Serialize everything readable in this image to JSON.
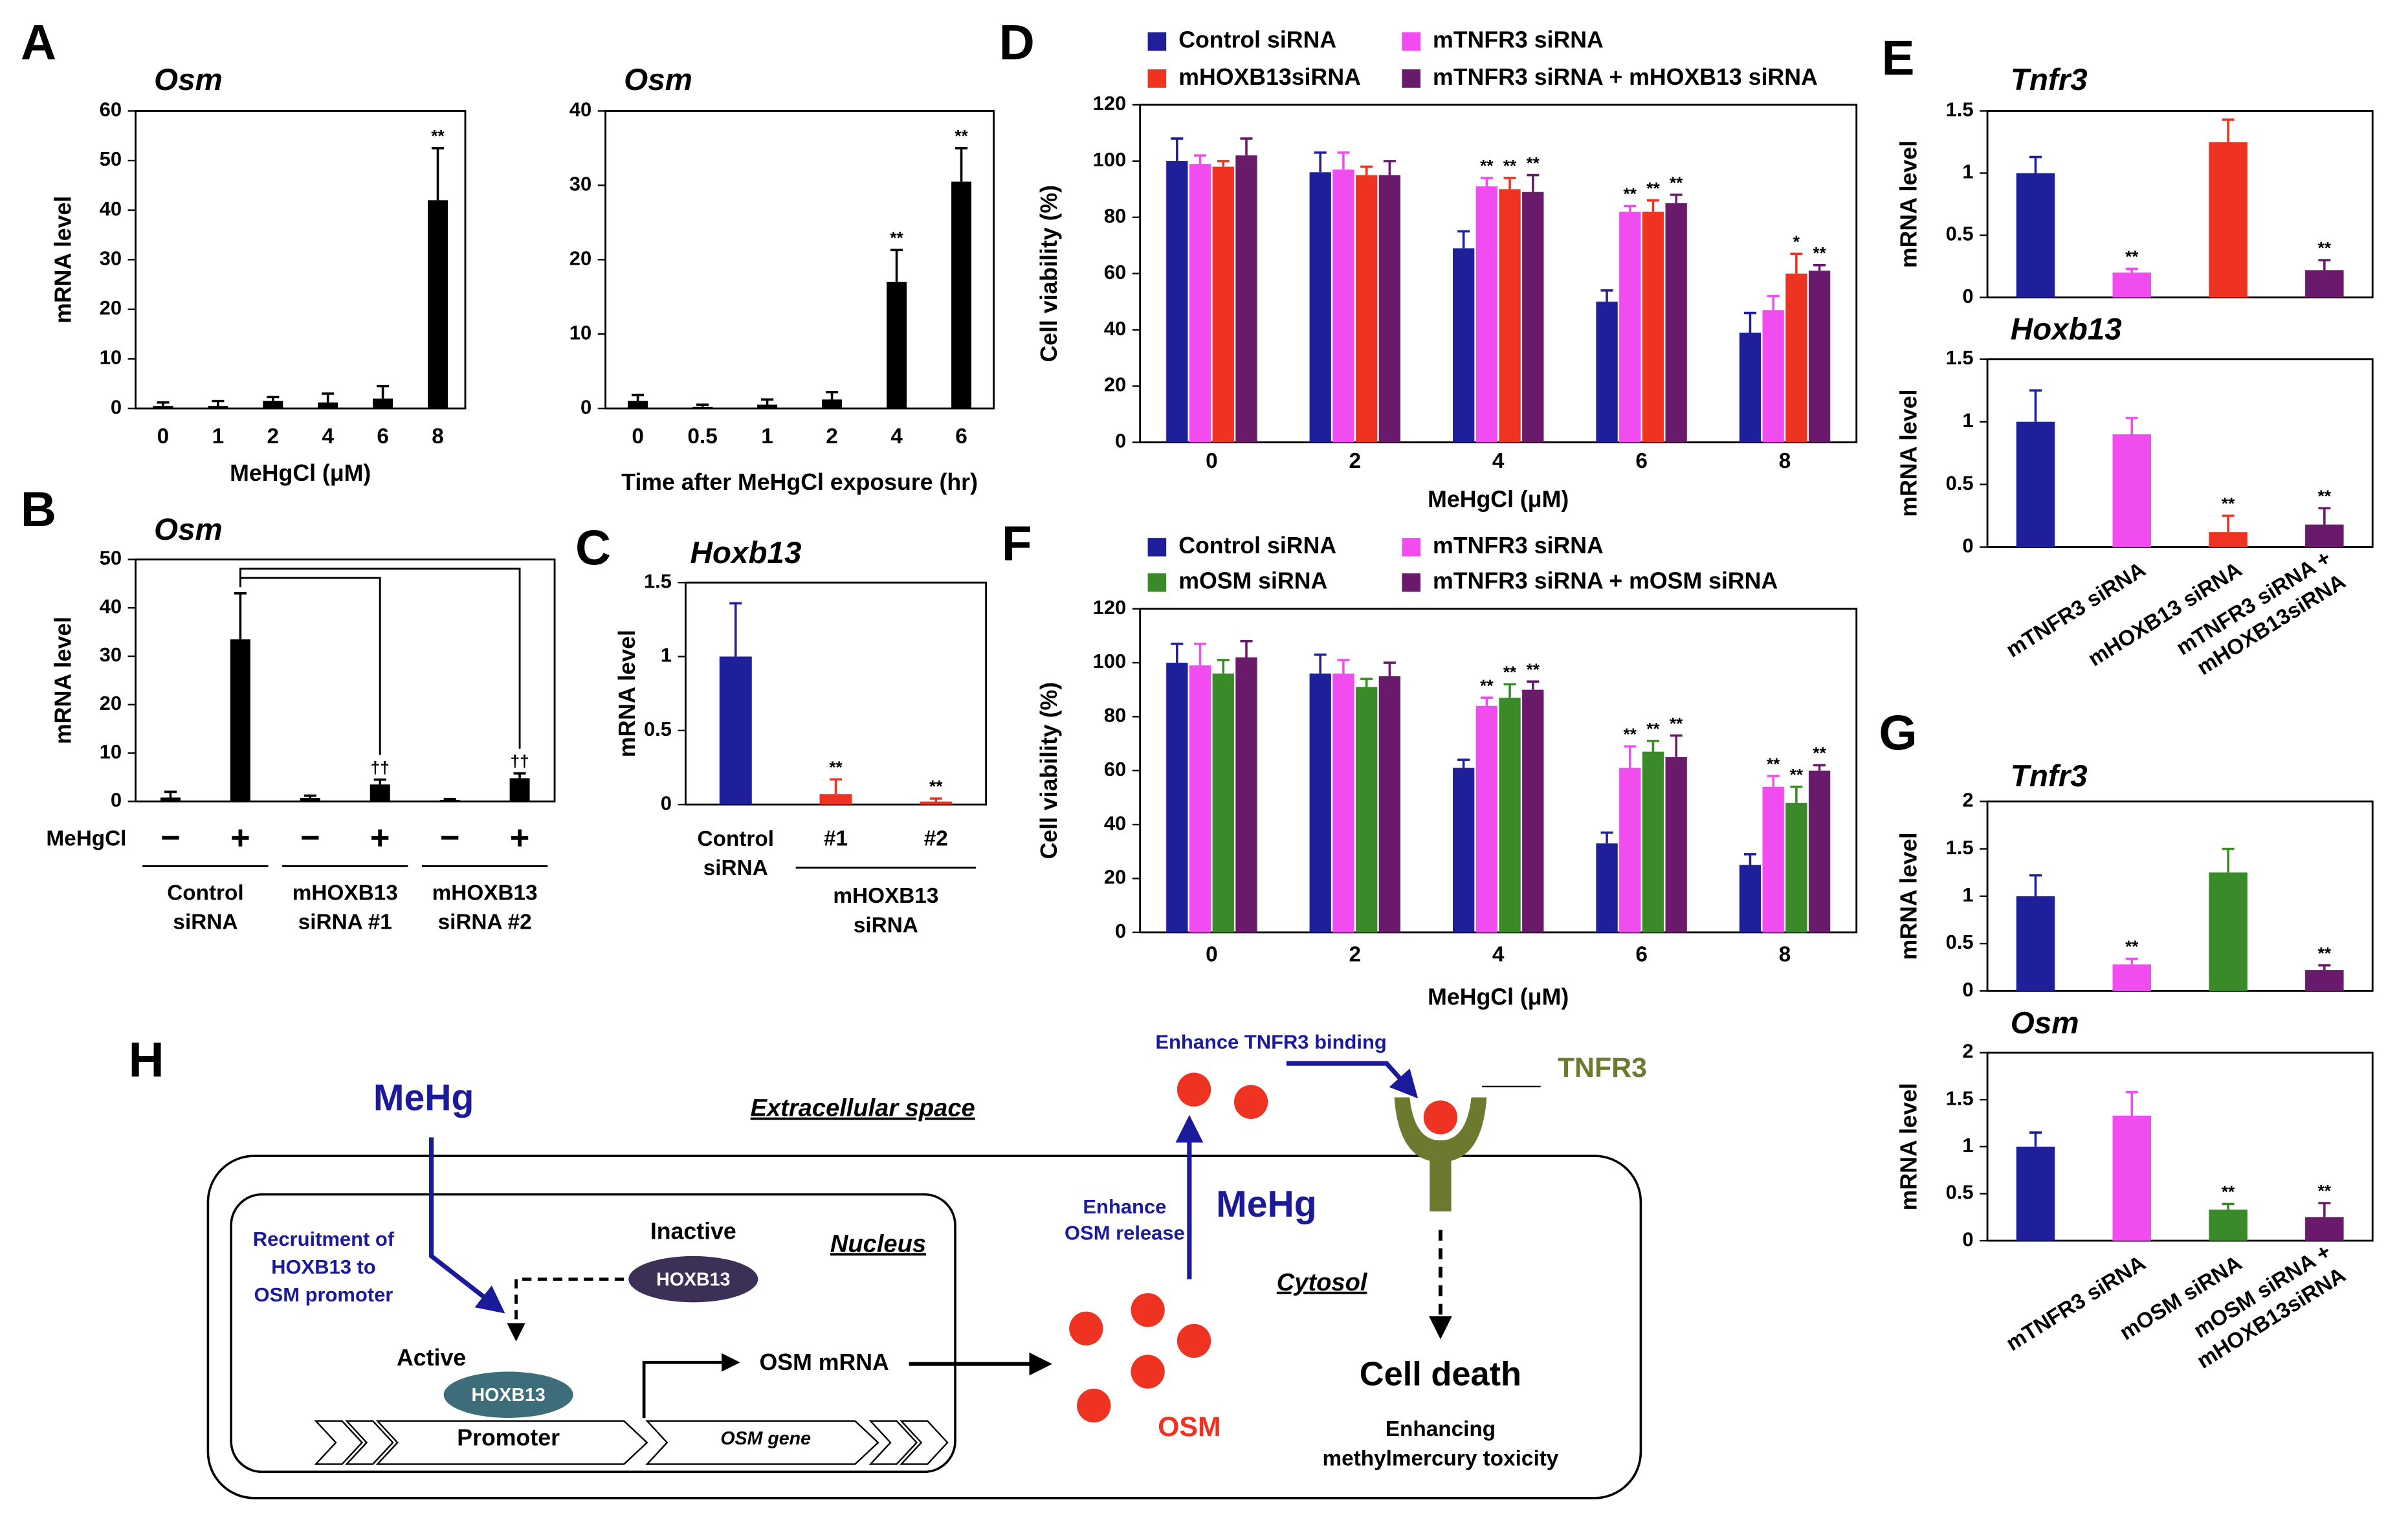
{
  "panels": [
    "A",
    "B",
    "C",
    "D",
    "E",
    "F",
    "G",
    "H"
  ],
  "chart_data": [
    {
      "type": "bar",
      "title": "Osm",
      "ylabel": "mRNA level",
      "xlabel": "MeHgCl (μM)",
      "categories": [
        "0",
        "1",
        "2",
        "4",
        "6",
        "8"
      ],
      "series": [
        {
          "color": "#000000",
          "values": [
            0.5,
            0.5,
            1.5,
            1.2,
            2,
            42
          ],
          "errors": [
            0.7,
            1,
            0.8,
            1.8,
            2.5,
            10.5
          ],
          "annotations": [
            null,
            null,
            null,
            null,
            null,
            "**"
          ]
        }
      ],
      "ylim": [
        0,
        60
      ],
      "yticks": [
        0,
        10,
        20,
        30,
        40,
        50,
        60
      ]
    },
    {
      "type": "bar",
      "title": "Osm",
      "xlabel": "Time after MeHgCl exposure (hr)",
      "categories": [
        "0",
        "0.5",
        "1",
        "2",
        "4",
        "6"
      ],
      "series": [
        {
          "color": "#000000",
          "values": [
            1,
            0.2,
            0.5,
            1.2,
            17,
            30.5
          ],
          "errors": [
            0.8,
            0.3,
            0.7,
            1,
            4.3,
            4.5
          ],
          "annotations": [
            null,
            null,
            null,
            null,
            "**",
            "**"
          ]
        }
      ],
      "ylim": [
        0,
        40
      ],
      "yticks": [
        0,
        10,
        20,
        30,
        40
      ]
    },
    {
      "type": "bar",
      "title": "Osm",
      "ylabel": "mRNA level",
      "row_label": "MeHgCl",
      "categories": [
        "−",
        "+",
        "−",
        "+",
        "−",
        "+"
      ],
      "groups": [
        [
          "Control",
          "siRNA"
        ],
        [
          "mHOXB13",
          "siRNA #1"
        ],
        [
          "mHOXB13",
          "siRNA #2"
        ]
      ],
      "series": [
        {
          "color": "#000000",
          "values": [
            0.8,
            33.5,
            0.7,
            3.5,
            0.3,
            4.8
          ],
          "errors": [
            1.2,
            9.5,
            0.5,
            1,
            0.2,
            1
          ],
          "annotations": [
            null,
            null,
            null,
            "††",
            null,
            "††"
          ]
        }
      ],
      "ylim": [
        0,
        50
      ],
      "yticks": [
        0,
        10,
        20,
        30,
        40,
        50
      ]
    },
    {
      "type": "bar",
      "title": "Hoxb13",
      "ylabel": "mRNA level",
      "categories": [
        [
          "Control",
          "siRNA"
        ],
        "#1",
        "#2"
      ],
      "groups": [
        [
          "mHOXB13",
          "siRNA"
        ]
      ],
      "series": [
        {
          "colors": [
            "#1f1f99",
            "#ee3322",
            "#ee3322"
          ],
          "values": [
            1,
            0.07,
            0.02
          ],
          "errors": [
            0.36,
            0.1,
            0.02
          ],
          "annotations": [
            null,
            "**",
            "**"
          ]
        }
      ],
      "ylim": [
        0,
        1.5
      ],
      "yticks": [
        0,
        0.5,
        1,
        1.5
      ]
    },
    {
      "type": "bar",
      "ylabel": "Cell viability (%)",
      "xlabel": "MeHgCl (μM)",
      "categories": [
        "0",
        "2",
        "4",
        "6",
        "8"
      ],
      "series": [
        {
          "name": "Control siRNA",
          "color": "#1f1f99",
          "values": [
            100,
            96,
            69,
            50,
            39
          ],
          "errors": [
            8,
            7,
            6,
            4,
            7
          ],
          "annotations": [
            null,
            null,
            null,
            null,
            null
          ]
        },
        {
          "name": "mTNFR3 siRNA",
          "color": "#f04cf0",
          "values": [
            99,
            97,
            91,
            82,
            47
          ],
          "errors": [
            3,
            6,
            3,
            2,
            5
          ],
          "annotations": [
            null,
            null,
            "**",
            "**",
            null
          ]
        },
        {
          "name": "mHOXB13siRNA",
          "color": "#ee3322",
          "values": [
            98,
            95,
            90,
            82,
            60
          ],
          "errors": [
            2,
            3,
            4,
            4,
            7
          ],
          "annotations": [
            null,
            null,
            "**",
            "**",
            "*"
          ]
        },
        {
          "name": "mTNFR3 siRNA + mHOXB13 siRNA",
          "color": "#6a1a6a",
          "values": [
            102,
            95,
            89,
            85,
            61
          ],
          "errors": [
            6,
            5,
            6,
            3,
            2
          ],
          "annotations": [
            null,
            null,
            "**",
            "**",
            "**"
          ]
        }
      ],
      "ylim": [
        0,
        120
      ],
      "yticks": [
        0,
        20,
        40,
        60,
        80,
        100,
        120
      ]
    },
    {
      "type": "bar",
      "title": "Tnfr3",
      "ylabel": "mRNA level",
      "series": [
        {
          "colors": [
            "#1f1f99",
            "#f04cf0",
            "#ee3322",
            "#6a1a6a"
          ],
          "values": [
            1,
            0.2,
            1.25,
            0.22
          ],
          "errors": [
            0.13,
            0.03,
            0.18,
            0.08
          ],
          "annotations": [
            null,
            "**",
            null,
            "**"
          ]
        }
      ],
      "ylim": [
        0,
        1.5
      ],
      "yticks": [
        0,
        0.5,
        1,
        1.5
      ]
    },
    {
      "type": "bar",
      "title": "Hoxb13",
      "ylabel": "mRNA level",
      "categories": [
        null,
        "mTNFR3 siRNA",
        "mHOXB13 siRNA",
        [
          "mTNFR3 siRNA +",
          "mHOXB13siRNA"
        ]
      ],
      "series": [
        {
          "colors": [
            "#1f1f99",
            "#f04cf0",
            "#ee3322",
            "#6a1a6a"
          ],
          "values": [
            1,
            0.9,
            0.12,
            0.18
          ],
          "errors": [
            0.25,
            0.13,
            0.13,
            0.13
          ],
          "annotations": [
            null,
            null,
            "**",
            "**"
          ]
        }
      ],
      "ylim": [
        0,
        1.5
      ],
      "yticks": [
        0,
        0.5,
        1,
        1.5
      ]
    },
    {
      "type": "bar",
      "ylabel": "Cell viability (%)",
      "xlabel": "MeHgCl (μM)",
      "categories": [
        "0",
        "2",
        "4",
        "6",
        "8"
      ],
      "series": [
        {
          "name": "Control siRNA",
          "color": "#1f1f99",
          "values": [
            100,
            96,
            61,
            33,
            25
          ],
          "errors": [
            7,
            7,
            3,
            4,
            4
          ],
          "annotations": [
            null,
            null,
            null,
            null,
            null
          ]
        },
        {
          "name": "mTNFR3 siRNA",
          "color": "#f04cf0",
          "values": [
            99,
            96,
            84,
            61,
            54
          ],
          "errors": [
            8,
            5,
            3,
            8,
            4
          ],
          "annotations": [
            null,
            null,
            "**",
            "**",
            "**"
          ]
        },
        {
          "name": "mOSM siRNA",
          "color": "#3a8a2a",
          "values": [
            96,
            91,
            87,
            67,
            48
          ],
          "errors": [
            5,
            3,
            5,
            4,
            6
          ],
          "annotations": [
            null,
            null,
            "**",
            "**",
            "**"
          ]
        },
        {
          "name": "mTNFR3 siRNA + mOSM siRNA",
          "color": "#6a1a6a",
          "values": [
            102,
            95,
            90,
            65,
            60
          ],
          "errors": [
            6,
            5,
            3,
            8,
            2
          ],
          "annotations": [
            null,
            null,
            "**",
            "**",
            "**"
          ]
        }
      ],
      "ylim": [
        0,
        120
      ],
      "yticks": [
        0,
        20,
        40,
        60,
        80,
        100,
        120
      ]
    },
    {
      "type": "bar",
      "title": "Tnfr3",
      "ylabel": "mRNA level",
      "series": [
        {
          "colors": [
            "#1f1f99",
            "#f04cf0",
            "#3a8a2a",
            "#6a1a6a"
          ],
          "values": [
            1,
            0.28,
            1.25,
            0.22
          ],
          "errors": [
            0.22,
            0.06,
            0.25,
            0.05
          ],
          "annotations": [
            null,
            "**",
            null,
            "**"
          ]
        }
      ],
      "ylim": [
        0,
        2
      ],
      "yticks": [
        0,
        0.5,
        1,
        1.5,
        2
      ]
    },
    {
      "type": "bar",
      "title": "Osm",
      "ylabel": "mRNA level",
      "categories": [
        null,
        "mTNFR3 siRNA",
        "mOSM siRNA",
        [
          "mOSM siRNA +",
          "mHOXB13siRNA"
        ]
      ],
      "series": [
        {
          "colors": [
            "#1f1f99",
            "#f04cf0",
            "#3a8a2a",
            "#6a1a6a"
          ],
          "values": [
            1,
            1.33,
            0.33,
            0.25
          ],
          "errors": [
            0.15,
            0.25,
            0.06,
            0.15
          ],
          "annotations": [
            null,
            null,
            "**",
            "**"
          ]
        }
      ],
      "ylim": [
        0,
        2
      ],
      "yticks": [
        0,
        0.5,
        1,
        1.5,
        2
      ]
    }
  ],
  "diagram": {
    "mehg_outside": "MeHg",
    "extracellular": "Extracellular space",
    "recruitment": [
      "Recruitment of",
      "HOXB13 to",
      "OSM promoter"
    ],
    "inactive": "Inactive",
    "hoxb13_inactive": "HOXB13",
    "nucleus": "Nucleus",
    "active": "Active",
    "hoxb13_active": "HOXB13",
    "promoter": "Promoter",
    "gene": "OSM gene",
    "mrna": "OSM mRNA",
    "release": [
      "Enhance",
      "OSM release"
    ],
    "mehg_inside": "MeHg",
    "cytosol": "Cytosol",
    "osm": "OSM",
    "binding": "Enhance TNFR3 binding",
    "tnfr3": "TNFR3",
    "cell_death": "Cell death",
    "toxicity": [
      "Enhancing",
      "methylmercury toxicity"
    ]
  }
}
